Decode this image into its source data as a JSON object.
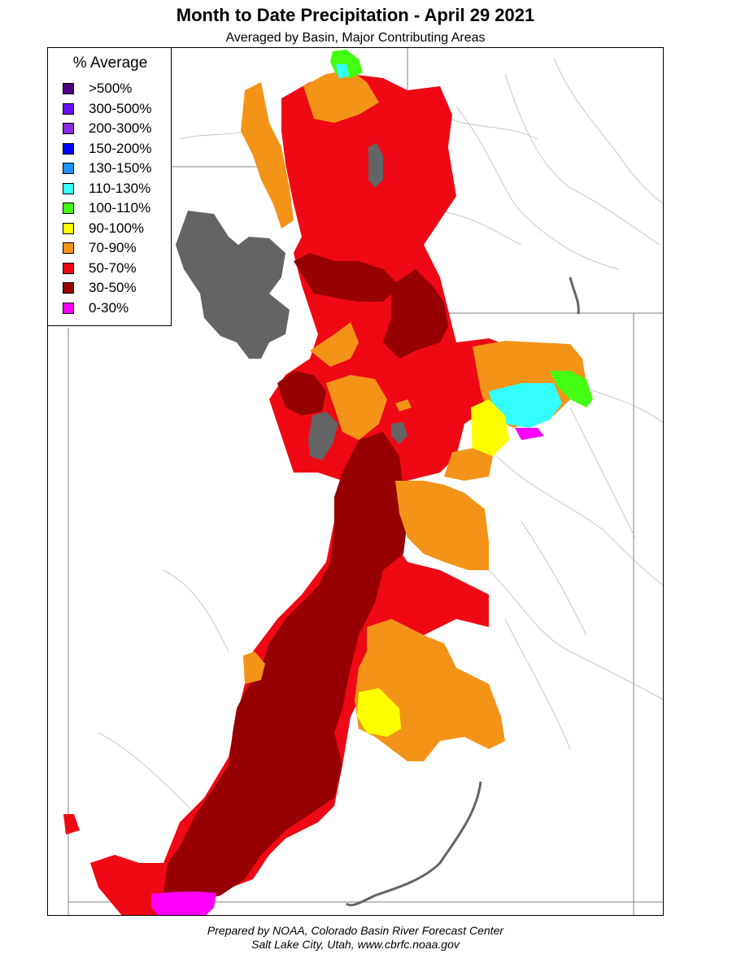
{
  "title": "Month to Date Precipitation - April 29 2021",
  "subtitle": "Averaged by Basin, Major Contributing Areas",
  "legend": {
    "title": "% Average",
    "items": [
      {
        "label": ">500%",
        "color": "#4b0082"
      },
      {
        "label": "300-500%",
        "color": "#6a0dff"
      },
      {
        "label": "200-300%",
        "color": "#8a2be2"
      },
      {
        "label": "150-200%",
        "color": "#0000ff"
      },
      {
        "label": "130-150%",
        "color": "#1e90ff"
      },
      {
        "label": "110-130%",
        "color": "#33ffff"
      },
      {
        "label": "100-110%",
        "color": "#44ff11"
      },
      {
        "label": "90-100%",
        "color": "#ffff00"
      },
      {
        "label": "70-90%",
        "color": "#f39318"
      },
      {
        "label": "50-70%",
        "color": "#ee0914"
      },
      {
        "label": "30-50%",
        "color": "#960002"
      },
      {
        "label": "0-30%",
        "color": "#ff00ff"
      }
    ]
  },
  "lake_color": "#646464",
  "credit": {
    "line1": "Prepared by NOAA, Colorado Basin River Forecast Center",
    "line2": "Salt Lake City, Utah, www.cbrfc.noaa.gov"
  }
}
